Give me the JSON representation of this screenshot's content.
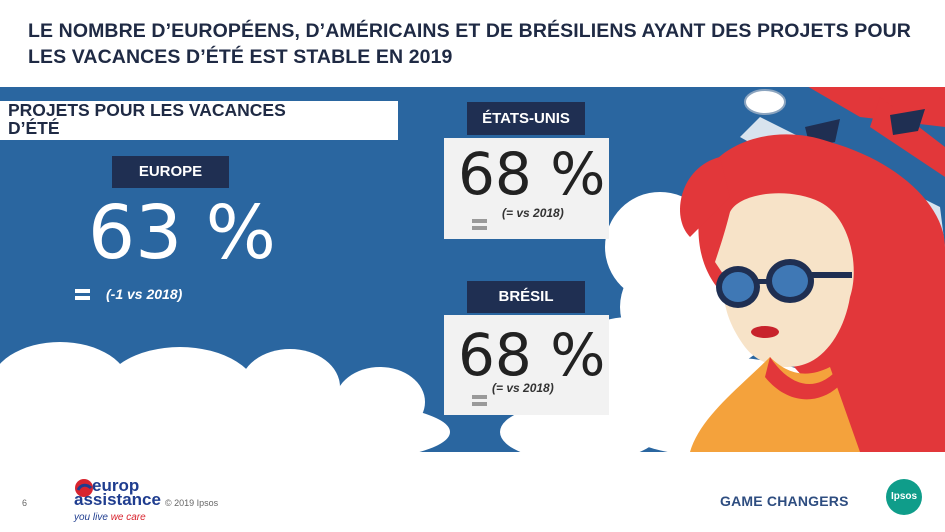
{
  "title": {
    "line1": "LE NOMBRE D’EUROPÉENS, D’AMÉRICAINS ET DE BRÉSILIENS AYANT DES PROJETS POUR",
    "line2": "LES VACANCES D’ÉTÉ EST STABLE EN 2019"
  },
  "section_label": {
    "line1": "PROJETS POUR LES VACANCES",
    "line2": "D’ÉTÉ"
  },
  "europe": {
    "label": "EUROPE",
    "value": "63 %",
    "note": "(-1 vs 2018)"
  },
  "usa": {
    "label": "ÉTATS-UNIS",
    "value": "68 %",
    "note": "(= vs 2018)"
  },
  "brazil": {
    "label": "BRÉSIL",
    "value": "68 %",
    "note": "(= vs 2018)"
  },
  "footer": {
    "page_number": "6",
    "brand_line1": "europ",
    "brand_line2": "assistance",
    "tagline_a": "you live ",
    "tagline_b": "we care",
    "copyright": "© 2019 Ipsos",
    "slogan": "GAME CHANGERS",
    "ipsos_logo": "Ipsos"
  },
  "colors": {
    "panel_blue": "#2a66a0",
    "navy": "#1f2f52",
    "hair_red": "#e2373a",
    "card_grey": "#f2f2f2"
  },
  "icons": {
    "trend_marker": "equals-icon",
    "brand_mark": "europ-assistance-logo"
  }
}
